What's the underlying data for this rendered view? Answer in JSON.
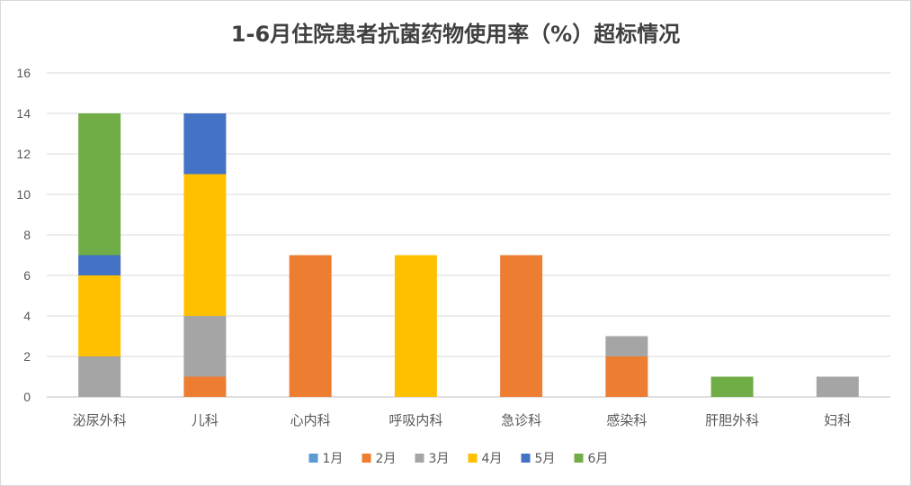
{
  "chart_data": {
    "type": "bar",
    "stacked": true,
    "title": "1-6月住院患者抗菌药物使用率（%）超标情况",
    "categories": [
      "泌尿外科",
      "儿科",
      "心内科",
      "呼吸内科",
      "急诊科",
      "感染科",
      "肝胆外科",
      "妇科"
    ],
    "ylim": [
      0,
      16
    ],
    "yticks": [
      0,
      2,
      4,
      6,
      8,
      10,
      12,
      14,
      16
    ],
    "grid": true,
    "legend_position": "bottom",
    "series": [
      {
        "name": "1月",
        "color": "#5b9bd5",
        "values": [
          0,
          0,
          0,
          0,
          0,
          0,
          0,
          0
        ]
      },
      {
        "name": "2月",
        "color": "#ed7d31",
        "values": [
          0,
          1,
          7,
          0,
          7,
          2,
          0,
          0
        ]
      },
      {
        "name": "3月",
        "color": "#a5a5a5",
        "values": [
          2,
          3,
          0,
          0,
          0,
          1,
          0,
          1
        ]
      },
      {
        "name": "4月",
        "color": "#ffc000",
        "values": [
          4,
          7,
          0,
          7,
          0,
          0,
          0,
          0
        ]
      },
      {
        "name": "5月",
        "color": "#4472c4",
        "values": [
          1,
          3,
          0,
          0,
          0,
          0,
          0,
          0
        ]
      },
      {
        "name": "6月",
        "color": "#70ad47",
        "values": [
          7,
          0,
          0,
          0,
          0,
          0,
          1,
          0
        ]
      }
    ]
  }
}
